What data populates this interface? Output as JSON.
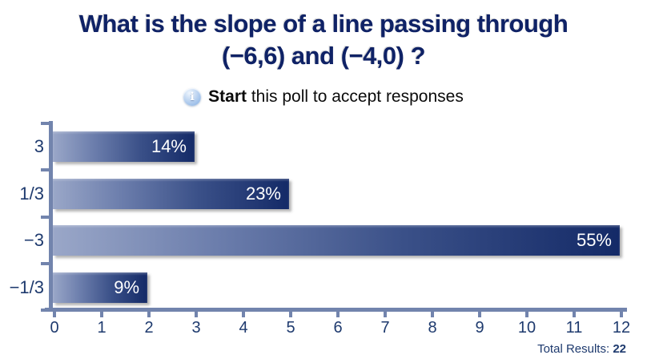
{
  "title": {
    "line1": "What is the slope of a line passing through",
    "line2": "(−6,6) and (−4,0) ?"
  },
  "subtitle": {
    "icon": "info-icon",
    "icon_glyph": "i",
    "action_label": "Start",
    "rest_text": " this poll to accept responses"
  },
  "footer": {
    "total_results_label": "Total Results: ",
    "total_results_value": "22"
  },
  "colors": {
    "title_navy": "#0f2266",
    "axis_line": "#7284ad",
    "axis_text": "#1e3a6e",
    "bar_gradient_light": "#9aa7c8",
    "bar_gradient_dark": "#142a67",
    "percent_text": "#ffffff",
    "subtitle_text": "#0b0b0b"
  },
  "chart_data": {
    "type": "bar",
    "orientation": "horizontal",
    "title": "What is the slope of a line passing through (−6,6) and (−4,0) ?",
    "categories": [
      "3",
      "1/3",
      "−3",
      "−1/3"
    ],
    "values": [
      3,
      5,
      12,
      2
    ],
    "percent_labels": [
      "14%",
      "23%",
      "55%",
      "9%"
    ],
    "x_ticks": [
      "0",
      "1",
      "2",
      "3",
      "4",
      "5",
      "6",
      "7",
      "8",
      "9",
      "10",
      "11",
      "12"
    ],
    "xlim": [
      0,
      12
    ],
    "xlabel": "",
    "ylabel": "",
    "grid": false,
    "legend_position": "none",
    "total_results": 22
  }
}
